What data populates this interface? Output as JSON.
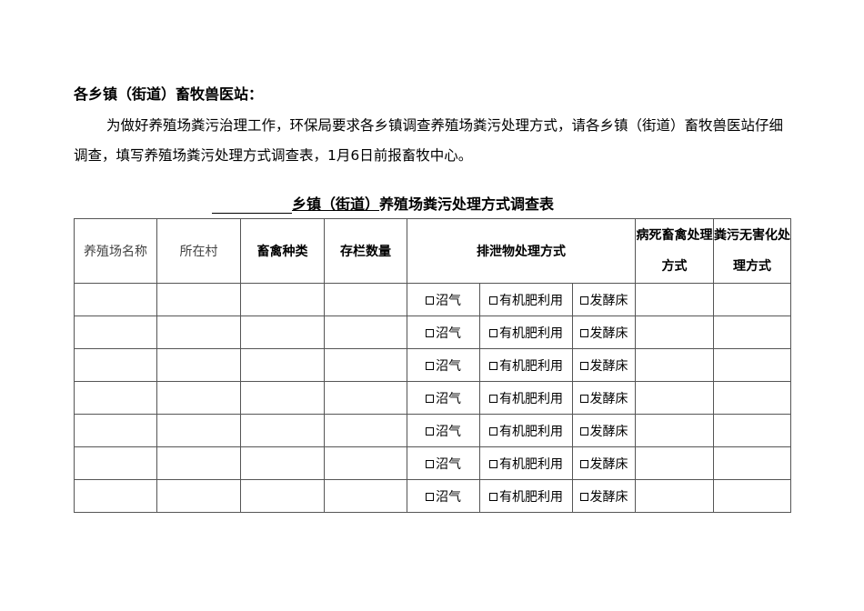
{
  "greeting": "各乡镇（街道）畜牧兽医站：",
  "paragraph": "为做好养殖场粪污治理工作，环保局要求各乡镇调查养殖场粪污处理方式，请各乡镇（街道）畜牧兽医站仔细调查，填写养殖场粪污处理方式调查表，1月6日前报畜牧中心。",
  "title": {
    "prefix": "乡镇（街道）",
    "main": "养殖场粪污处理方式调查表"
  },
  "headers": [
    "养殖场名称",
    "所在村",
    "畜禽种类",
    "存栏数量",
    "排泄物处理方式",
    "病死畜禽处理方式",
    "粪污无害化处理方式"
  ],
  "options": [
    "沼气",
    "有机肥利用",
    "发酵床"
  ],
  "row_count": 7
}
